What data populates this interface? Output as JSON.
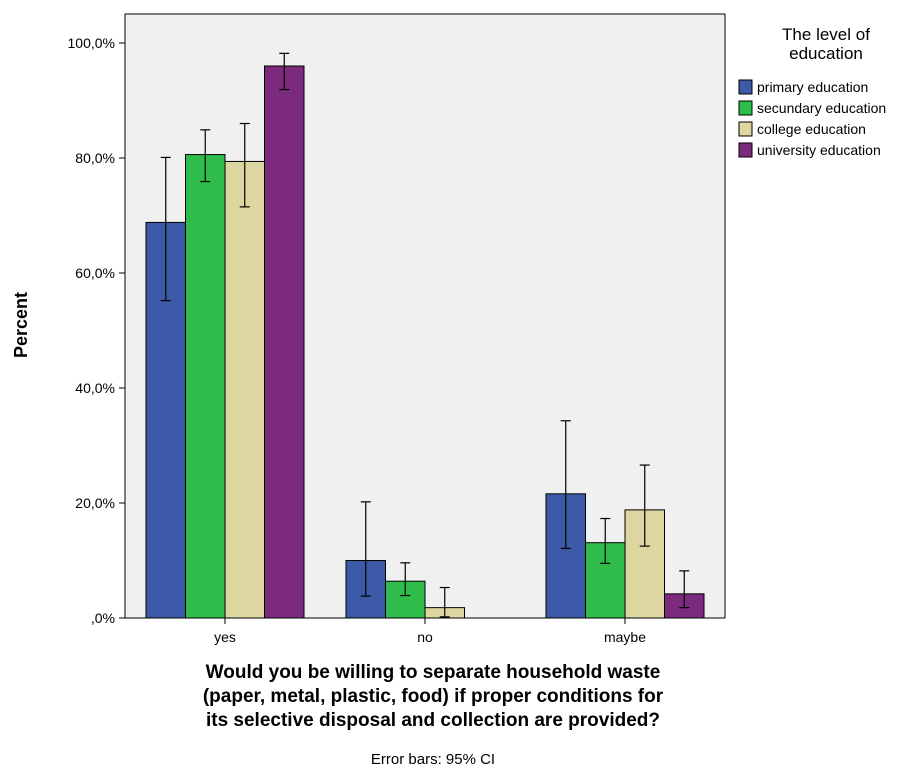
{
  "chart_data": {
    "type": "bar",
    "categories": [
      "yes",
      "no",
      "maybe"
    ],
    "series": [
      {
        "name": "primary education",
        "color": "#3C5AA8",
        "values": [
          68.8,
          10.0,
          21.6
        ],
        "ci_low": [
          55.2,
          3.8,
          12.1
        ],
        "ci_high": [
          80.1,
          20.2,
          34.3
        ]
      },
      {
        "name": "secundary education",
        "color": "#2EBD4A",
        "values": [
          80.6,
          6.4,
          13.1
        ],
        "ci_low": [
          75.9,
          3.9,
          9.5
        ],
        "ci_high": [
          84.9,
          9.6,
          17.3
        ]
      },
      {
        "name": "college education",
        "color": "#DDD6A0",
        "values": [
          79.4,
          1.8,
          18.8
        ],
        "ci_low": [
          71.5,
          0.2,
          12.5
        ],
        "ci_high": [
          86.0,
          5.3,
          26.6
        ]
      },
      {
        "name": "university education",
        "color": "#7B2A7E",
        "values": [
          96.0,
          0.0,
          4.2
        ],
        "ci_low": [
          91.9,
          0.0,
          1.8
        ],
        "ci_high": [
          98.2,
          0.0,
          8.2
        ]
      }
    ],
    "ylim": [
      0,
      100
    ],
    "yticks": [
      "100,0%",
      "80,0%",
      "60,0%",
      "40,0%",
      "20,0%",
      ",0%"
    ],
    "ytick_values": [
      100,
      80,
      60,
      40,
      20,
      0
    ],
    "ylabel": "Percent",
    "xlabel_lines": [
      "Would you be willing to separate household waste",
      "(paper, metal, plastic, food) if proper conditions for",
      "its selective disposal and collection are provided?"
    ],
    "legend_title_lines": [
      "The level of",
      "education"
    ],
    "legend_position": "right",
    "plot_background": "#F0F0F0",
    "note": "Error bars: 95% CI"
  }
}
